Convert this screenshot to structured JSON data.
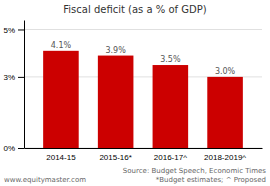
{
  "chart_data": {
    "type": "bar",
    "title": "Fiscal deficit (as a % of GDP)",
    "categories": [
      "2014-15",
      "2015-16*",
      "2016-17^",
      "2018-2019^"
    ],
    "values": [
      4.1,
      3.9,
      3.5,
      3.0
    ],
    "value_labels": [
      "4.1%",
      "3.9%",
      "3.5%",
      "3.0%"
    ],
    "data_labels": true,
    "color": "#cc0000",
    "ylim": [
      0,
      5.4
    ],
    "yticks": [
      {
        "value": 0,
        "label": "0%"
      },
      {
        "value": 3,
        "label": "3%"
      },
      {
        "value": 5,
        "label": "5%"
      }
    ],
    "grid": true,
    "annotations": [
      "www.equitymaster.com",
      "Source: Budget Speech, Economic Times",
      "*Budget estimates; ^ Proposed"
    ]
  }
}
